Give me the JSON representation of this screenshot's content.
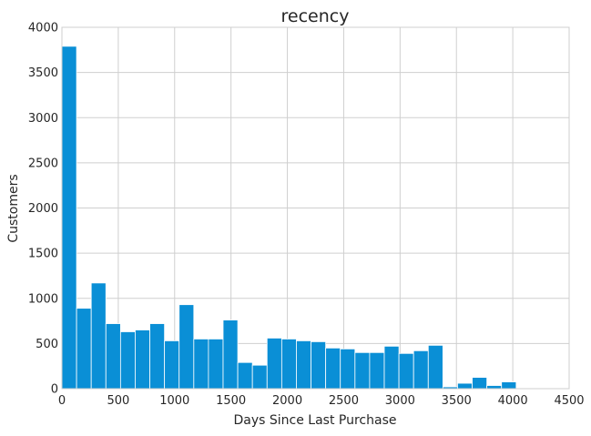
{
  "chart_data": {
    "type": "bar",
    "title": "recency",
    "xlabel": "Days Since Last Purchase",
    "ylabel": "Customers",
    "xlim": [
      0,
      4500
    ],
    "ylim": [
      0,
      4000
    ],
    "x_ticks": [
      0,
      500,
      1000,
      1500,
      2000,
      2500,
      3000,
      3500,
      4000,
      4500
    ],
    "y_ticks": [
      0,
      500,
      1000,
      1500,
      2000,
      2500,
      3000,
      3500,
      4000
    ],
    "grid": true,
    "bar_color": "#0a8fd6",
    "bins": [
      {
        "start": 0,
        "end": 130,
        "value": 3790
      },
      {
        "start": 130,
        "end": 260,
        "value": 890
      },
      {
        "start": 260,
        "end": 390,
        "value": 1170
      },
      {
        "start": 390,
        "end": 520,
        "value": 720
      },
      {
        "start": 520,
        "end": 650,
        "value": 630
      },
      {
        "start": 650,
        "end": 780,
        "value": 650
      },
      {
        "start": 780,
        "end": 910,
        "value": 720
      },
      {
        "start": 910,
        "end": 1040,
        "value": 530
      },
      {
        "start": 1040,
        "end": 1170,
        "value": 930
      },
      {
        "start": 1170,
        "end": 1300,
        "value": 550
      },
      {
        "start": 1300,
        "end": 1430,
        "value": 550
      },
      {
        "start": 1430,
        "end": 1560,
        "value": 760
      },
      {
        "start": 1560,
        "end": 1690,
        "value": 290
      },
      {
        "start": 1690,
        "end": 1820,
        "value": 260
      },
      {
        "start": 1820,
        "end": 1950,
        "value": 560
      },
      {
        "start": 1950,
        "end": 2080,
        "value": 550
      },
      {
        "start": 2080,
        "end": 2210,
        "value": 530
      },
      {
        "start": 2210,
        "end": 2340,
        "value": 520
      },
      {
        "start": 2340,
        "end": 2470,
        "value": 450
      },
      {
        "start": 2470,
        "end": 2600,
        "value": 440
      },
      {
        "start": 2600,
        "end": 2730,
        "value": 400
      },
      {
        "start": 2730,
        "end": 2860,
        "value": 400
      },
      {
        "start": 2860,
        "end": 2990,
        "value": 470
      },
      {
        "start": 2990,
        "end": 3120,
        "value": 390
      },
      {
        "start": 3120,
        "end": 3250,
        "value": 420
      },
      {
        "start": 3250,
        "end": 3380,
        "value": 480
      },
      {
        "start": 3380,
        "end": 3510,
        "value": 20
      },
      {
        "start": 3510,
        "end": 3640,
        "value": 60
      },
      {
        "start": 3640,
        "end": 3770,
        "value": 125
      },
      {
        "start": 3770,
        "end": 3900,
        "value": 35
      },
      {
        "start": 3900,
        "end": 4030,
        "value": 75
      }
    ]
  }
}
